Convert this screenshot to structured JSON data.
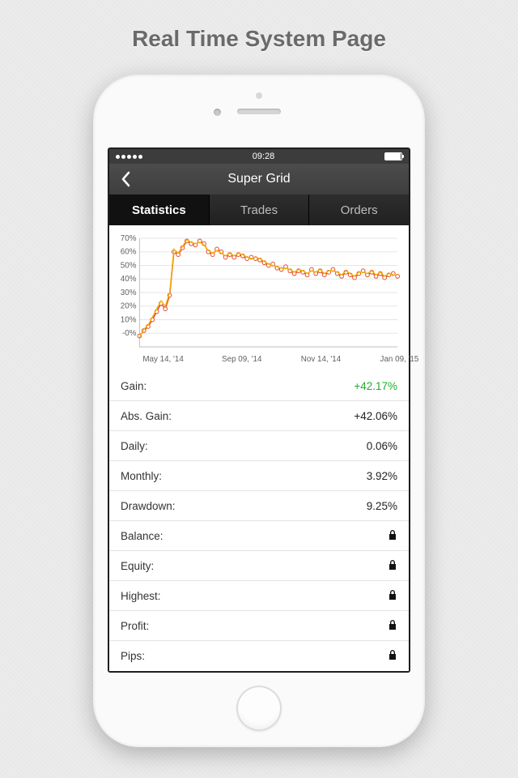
{
  "hero": {
    "title": "Real Time System Page"
  },
  "status": {
    "time": "09:28"
  },
  "nav": {
    "title": "Super Grid"
  },
  "tabs": {
    "items": [
      {
        "label": "Statistics",
        "active": true
      },
      {
        "label": "Trades",
        "active": false
      },
      {
        "label": "Orders",
        "active": false
      }
    ]
  },
  "chart": {
    "type": "line",
    "ylim": [
      -10,
      70
    ],
    "ytick_step": 10,
    "y_ticks": [
      "70%",
      "60%",
      "50%",
      "40%",
      "30%",
      "20%",
      "10%",
      "-0%"
    ],
    "x_ticks": [
      "May 14, '14",
      "Sep 09, '14",
      "Nov 14, '14",
      "Jan 09, '15"
    ],
    "grid_color": "#e5e5e5",
    "axis_label_color": "#606060",
    "axis_label_fontsize": 10,
    "background_color": "#ffffff",
    "series": [
      {
        "name": "gain",
        "stroke": "#e24a2c",
        "stroke_width": 1.6,
        "marker": "circle",
        "marker_size": 2.4,
        "marker_fill": "#ffffff",
        "marker_stroke": "#e24a2c",
        "points_pct": [
          -2,
          2,
          5,
          10,
          16,
          22,
          18,
          28,
          60,
          58,
          63,
          68,
          66,
          65,
          68,
          66,
          60,
          58,
          62,
          60,
          56,
          58,
          56,
          58,
          57,
          55,
          56,
          55,
          54,
          52,
          50,
          51,
          48,
          47,
          49,
          46,
          44,
          46,
          45,
          43,
          47,
          44,
          46,
          43,
          45,
          47,
          44,
          42,
          45,
          43,
          41,
          44,
          46,
          43,
          45,
          42,
          44,
          41,
          43,
          44,
          42
        ]
      },
      {
        "name": "secondary",
        "stroke": "#f2b705",
        "stroke_width": 1.4,
        "marker": "none",
        "points_pct": [
          -3,
          3,
          6,
          12,
          18,
          24,
          20,
          30,
          62,
          59,
          64,
          69,
          67,
          66,
          67,
          65,
          61,
          59,
          61,
          59,
          57,
          59,
          57,
          59,
          58,
          56,
          55,
          56,
          55,
          53,
          51,
          50,
          49,
          48,
          48,
          47,
          45,
          47,
          46,
          44,
          46,
          45,
          47,
          44,
          46,
          46,
          45,
          43,
          46,
          44,
          42,
          45,
          45,
          44,
          46,
          43,
          45,
          42,
          44,
          43,
          43
        ]
      }
    ]
  },
  "stats": {
    "rows": [
      {
        "label": "Gain:",
        "value": "+42.17%",
        "positive": true,
        "locked": false
      },
      {
        "label": "Abs. Gain:",
        "value": "+42.06%",
        "positive": false,
        "locked": false
      },
      {
        "label": "Daily:",
        "value": "0.06%",
        "positive": false,
        "locked": false
      },
      {
        "label": "Monthly:",
        "value": "3.92%",
        "positive": false,
        "locked": false
      },
      {
        "label": "Drawdown:",
        "value": "9.25%",
        "positive": false,
        "locked": false
      },
      {
        "label": "Balance:",
        "value": "",
        "positive": false,
        "locked": true
      },
      {
        "label": "Equity:",
        "value": "",
        "positive": false,
        "locked": true
      },
      {
        "label": "Highest:",
        "value": "",
        "positive": false,
        "locked": true
      },
      {
        "label": "Profit:",
        "value": "",
        "positive": false,
        "locked": true
      },
      {
        "label": "Pips:",
        "value": "",
        "positive": false,
        "locked": true
      }
    ]
  },
  "colors": {
    "positive": "#1fae2b",
    "text": "#333333"
  }
}
